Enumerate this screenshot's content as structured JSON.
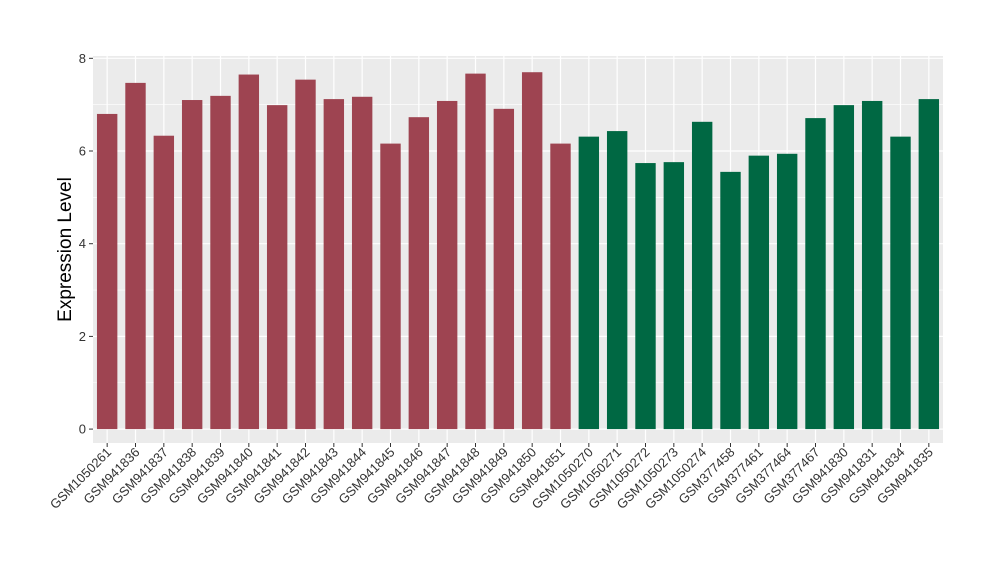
{
  "chart_data": {
    "type": "bar",
    "title": "",
    "xlabel": "",
    "ylabel": "Expression Level",
    "ylim": [
      -0.3,
      8.05
    ],
    "yticks": [
      0,
      2,
      4,
      6,
      8
    ],
    "grid": true,
    "legend": "none",
    "categories": [
      "GSM1050261",
      "GSM941836",
      "GSM941837",
      "GSM941838",
      "GSM941839",
      "GSM941840",
      "GSM941841",
      "GSM941842",
      "GSM941843",
      "GSM941844",
      "GSM941845",
      "GSM941846",
      "GSM941847",
      "GSM941848",
      "GSM941849",
      "GSM941850",
      "GSM941851",
      "GSM1050270",
      "GSM1050271",
      "GSM1050272",
      "GSM1050273",
      "GSM1050274",
      "GSM377458",
      "GSM377461",
      "GSM377464",
      "GSM377467",
      "GSM941830",
      "GSM941831",
      "GSM941834",
      "GSM941835"
    ],
    "values": [
      6.8,
      7.47,
      6.33,
      7.1,
      7.19,
      7.65,
      6.99,
      7.54,
      7.12,
      7.17,
      6.16,
      6.73,
      7.08,
      7.67,
      6.91,
      7.7,
      6.16,
      6.31,
      6.43,
      5.74,
      5.76,
      6.63,
      5.55,
      5.9,
      5.94,
      6.71,
      6.99,
      7.08,
      6.31,
      7.12
    ],
    "group_colors": [
      "#9e4451",
      "#9e4451",
      "#9e4451",
      "#9e4451",
      "#9e4451",
      "#9e4451",
      "#9e4451",
      "#9e4451",
      "#9e4451",
      "#9e4451",
      "#9e4451",
      "#9e4451",
      "#9e4451",
      "#9e4451",
      "#9e4451",
      "#9e4451",
      "#9e4451",
      "#006843",
      "#006843",
      "#006843",
      "#006843",
      "#006843",
      "#006843",
      "#006843",
      "#006843",
      "#006843",
      "#006843",
      "#006843",
      "#006843",
      "#006843"
    ],
    "panel_background": "#ebebeb",
    "grid_color": "#ffffff"
  }
}
